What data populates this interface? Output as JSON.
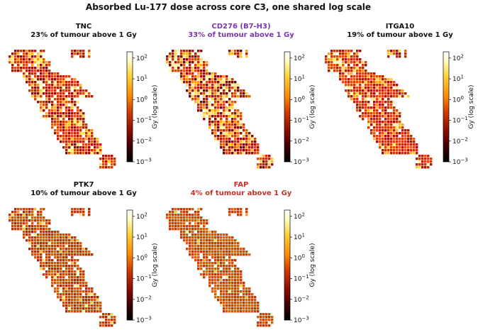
{
  "figure": {
    "title": "Absorbed Lu-177 dose across core C3, one shared log scale"
  },
  "colors": {
    "default_title": "#111111",
    "cd276_title": "#7b35b0",
    "fap_title": "#c4322a",
    "colormap": [
      "#000000",
      "#3d0000",
      "#8a0b00",
      "#cf3a00",
      "#ff8a00",
      "#ffd23a",
      "#ffffc4",
      "#ffffff"
    ]
  },
  "chart_data": [
    {
      "type": "heatmap",
      "title": "TNC",
      "subtitle": "23% of tumour above 1 Gy",
      "title_color": "#111111",
      "fraction_above_1Gy": 0.23,
      "colorbar": {
        "label": "Gy (log scale)",
        "scale": "log",
        "range": [
          0.001,
          200
        ],
        "ticks": [
          "10^2",
          "10^1",
          "10^0",
          "10^-1",
          "10^-2",
          "10^-3"
        ]
      }
    },
    {
      "type": "heatmap",
      "title": "CD276 (B7-H3)",
      "subtitle": "33% of tumour above 1 Gy",
      "title_color": "#7b35b0",
      "fraction_above_1Gy": 0.33,
      "colorbar": {
        "label": "Gy (log scale)",
        "scale": "log",
        "range": [
          0.001,
          200
        ],
        "ticks": [
          "10^2",
          "10^1",
          "10^0",
          "10^-1",
          "10^-2",
          "10^-3"
        ]
      }
    },
    {
      "type": "heatmap",
      "title": "ITGA10",
      "subtitle": "19% of tumour above 1 Gy",
      "title_color": "#111111",
      "fraction_above_1Gy": 0.19,
      "colorbar": {
        "label": "Gy (log scale)",
        "scale": "log",
        "range": [
          0.001,
          200
        ],
        "ticks": [
          "10^2",
          "10^1",
          "10^0",
          "10^-1",
          "10^-2",
          "10^-3"
        ]
      }
    },
    {
      "type": "heatmap",
      "title": "PTK7",
      "subtitle": "10% of tumour above 1 Gy",
      "title_color": "#111111",
      "fraction_above_1Gy": 0.1,
      "colorbar": {
        "label": "Gy (log scale)",
        "scale": "log",
        "range": [
          0.001,
          200
        ],
        "ticks": [
          "10^2",
          "10^1",
          "10^0",
          "10^-1",
          "10^-2",
          "10^-3"
        ]
      }
    },
    {
      "type": "heatmap",
      "title": "FAP",
      "subtitle": "4% of tumour above 1 Gy",
      "title_color": "#c4322a",
      "fraction_above_1Gy": 0.04,
      "colorbar": {
        "label": "Gy (log scale)",
        "scale": "log",
        "range": [
          0.001,
          200
        ],
        "ticks": [
          "10^2",
          "10^1",
          "10^0",
          "10^-1",
          "10^-2",
          "10^-3"
        ]
      }
    }
  ]
}
